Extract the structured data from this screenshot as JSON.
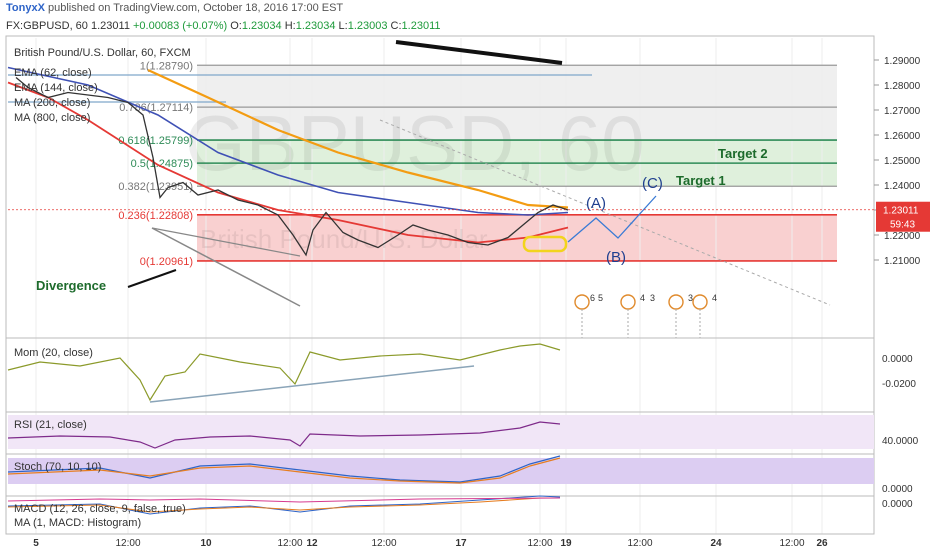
{
  "header": {
    "author": "TonyxX",
    "published_text": "published on TradingView.com, October 18, 2016 17:00 EST",
    "symbol": "FX:GBPUSD, 60",
    "last": "1.23011",
    "change": "+0.00083 (+0.07%)",
    "o_label": "O:",
    "o_value": "1.23034",
    "h_label": "H:",
    "h_value": "1.23034",
    "l_label": "L:",
    "l_value": "1.23003",
    "c_label": "C:",
    "c_value": "1.23011"
  },
  "legend": {
    "title": "British Pound/U.S. Dollar, 60, FXCM",
    "items": [
      "EMA (62, close)",
      "EMA (144, close)",
      "MA (200, close)",
      "MA (800, close)"
    ],
    "watermark": "GBPUSD, 60",
    "watermark_sub": "British Pound/U.S. Dollar"
  },
  "fib_levels": [
    {
      "label": "1(1.28790)",
      "value": 1.2879
    },
    {
      "label": "0.786(1.27114)",
      "value": 1.27114
    },
    {
      "label": "0.618(1.25799)",
      "value": 1.25799
    },
    {
      "label": "0.5(1.24875)",
      "value": 1.24875
    },
    {
      "label": "0.382(1.23951)",
      "value": 1.23951
    },
    {
      "label": "0.236(1.22808)",
      "value": 1.22808
    },
    {
      "label": "0(1.20961)",
      "value": 1.20961
    }
  ],
  "annotations": {
    "target2": "Target 2",
    "target1": "Target 1",
    "wave_a": "(A)",
    "wave_b": "(B)",
    "wave_c": "(C)",
    "divergence": "Divergence"
  },
  "price_badge": {
    "value": "1.23011",
    "timer": "59:43",
    "color": "#e53935"
  },
  "event_flags": [
    "6",
    "5",
    "4",
    "3",
    "3",
    "4"
  ],
  "panes": {
    "mom": "Mom (20, close)",
    "rsi": "RSI (21, close)",
    "stoch": "Stoch (70, 10, 10)",
    "macd": "MACD (12, 26, close, 9, false, true)",
    "ma_hist": "MA (1, MACD: Histogram)"
  },
  "colors": {
    "ema62": "#e53935",
    "ema144": "#3f51b5",
    "ma200": "#f39c12",
    "price": "#333333",
    "fib_red": "#e53935",
    "fib_green": "#2e8b57",
    "wave": "#3a7bd5"
  },
  "chart_data": {
    "type": "line",
    "x_ticks": [
      "5",
      "12:00",
      "10",
      "12:00",
      "12",
      "12:00",
      "17",
      "12:00",
      "19",
      "12:00",
      "24",
      "12:00",
      "26"
    ],
    "y_ticks": [
      "1.29000",
      "1.28000",
      "1.27000",
      "1.26000",
      "1.25000",
      "1.24000",
      "1.23000",
      "1.22000",
      "1.21000"
    ],
    "ylim": [
      1.205,
      1.295
    ],
    "mom_ticks": [
      "0.0000",
      "-0.0200"
    ],
    "rsi_ticks": [
      "40.0000"
    ],
    "stoch_ticks": [
      "0.0000"
    ],
    "macd_ticks": [
      "0.0000"
    ],
    "series": [
      {
        "name": "EMA (62, close)",
        "values": [
          [
            0,
            1.281
          ],
          [
            40,
            1.275
          ],
          [
            80,
            1.266
          ],
          [
            150,
            1.248
          ],
          [
            210,
            1.237
          ],
          [
            270,
            1.23
          ],
          [
            330,
            1.226
          ],
          [
            400,
            1.22
          ],
          [
            470,
            1.217
          ],
          [
            520,
            1.219
          ],
          [
            560,
            1.223
          ]
        ]
      },
      {
        "name": "EMA (144, close)",
        "values": [
          [
            0,
            1.287
          ],
          [
            80,
            1.28
          ],
          [
            150,
            1.268
          ],
          [
            210,
            1.253
          ],
          [
            270,
            1.244
          ],
          [
            330,
            1.237
          ],
          [
            400,
            1.233
          ],
          [
            470,
            1.229
          ],
          [
            520,
            1.228
          ],
          [
            560,
            1.229
          ]
        ]
      },
      {
        "name": "MA (200, close)",
        "values": [
          [
            140,
            1.286
          ],
          [
            200,
            1.275
          ],
          [
            270,
            1.262
          ],
          [
            330,
            1.253
          ],
          [
            400,
            1.245
          ],
          [
            470,
            1.238
          ],
          [
            520,
            1.232
          ],
          [
            560,
            1.231
          ]
        ]
      },
      {
        "name": "Price",
        "values": [
          [
            8,
            1.283
          ],
          [
            20,
            1.279
          ],
          [
            40,
            1.275
          ],
          [
            60,
            1.277
          ],
          [
            80,
            1.276
          ],
          [
            100,
            1.275
          ],
          [
            120,
            1.273
          ],
          [
            135,
            1.268
          ],
          [
            145,
            1.251
          ],
          [
            152,
            1.235
          ],
          [
            160,
            1.239
          ],
          [
            175,
            1.241
          ],
          [
            190,
            1.236
          ],
          [
            210,
            1.238
          ],
          [
            230,
            1.234
          ],
          [
            250,
            1.232
          ],
          [
            270,
            1.228
          ],
          [
            285,
            1.22
          ],
          [
            298,
            1.212
          ],
          [
            305,
            1.222
          ],
          [
            318,
            1.229
          ],
          [
            335,
            1.221
          ],
          [
            350,
            1.218
          ],
          [
            370,
            1.215
          ],
          [
            390,
            1.22
          ],
          [
            405,
            1.224
          ],
          [
            420,
            1.222
          ],
          [
            440,
            1.22
          ],
          [
            460,
            1.217
          ],
          [
            480,
            1.216
          ],
          [
            500,
            1.219
          ],
          [
            515,
            1.224
          ],
          [
            530,
            1.229
          ],
          [
            545,
            1.232
          ],
          [
            560,
            1.23
          ]
        ]
      }
    ]
  }
}
